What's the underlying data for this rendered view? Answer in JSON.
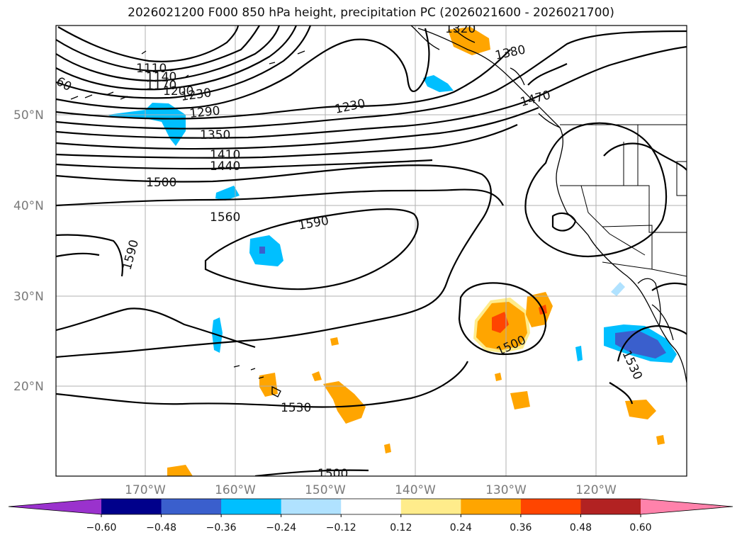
{
  "title": "2026021200 F000 850 hPa height, precipitation PC (2026021600 - 2026021700)",
  "map": {
    "lat_labels": [
      "50°N",
      "40°N",
      "30°N",
      "20°N"
    ],
    "lon_labels": [
      "170°W",
      "160°W",
      "150°W",
      "140°W",
      "130°W",
      "120°W"
    ]
  },
  "contour_labels": [
    "60",
    "1110",
    "1140",
    "1170",
    "1200",
    "1230",
    "1290",
    "1350",
    "1410",
    "1440",
    "1500",
    "1560",
    "1590",
    "1590",
    "1230",
    "1380",
    "1470",
    "1500",
    "1530",
    "1530",
    "1500",
    "1320"
  ],
  "colorbar": {
    "ticks": [
      "−0.60",
      "−0.48",
      "−0.36",
      "−0.24",
      "−0.12",
      "0.12",
      "0.24",
      "0.36",
      "0.48",
      "0.60"
    ],
    "colors": [
      "#9a32cd",
      "#00008b",
      "#3a5fcd",
      "#00bfff",
      "#b0e2ff",
      "#ffffff",
      "#ffec8b",
      "#ffa500",
      "#ff4500",
      "#b22222",
      "#ff82ab"
    ]
  }
}
